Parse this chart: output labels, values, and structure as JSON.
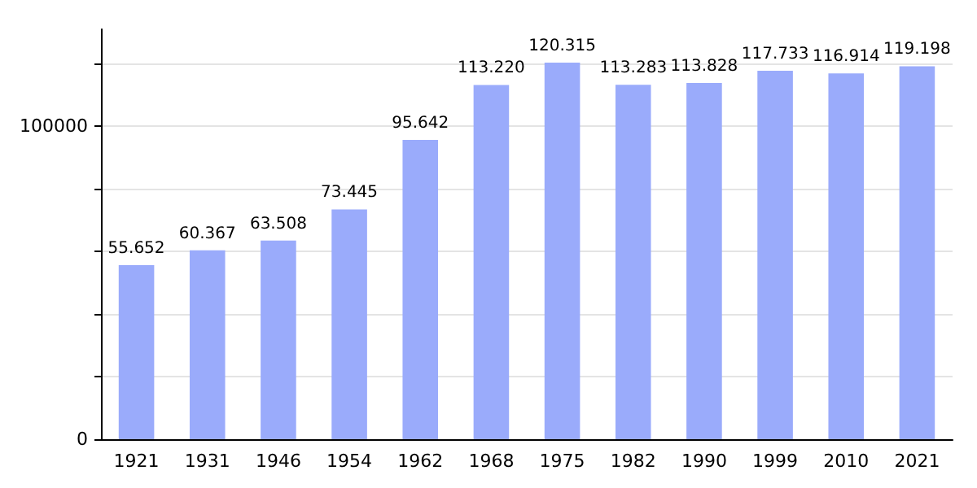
{
  "chart_data": {
    "type": "bar",
    "categories": [
      "1921",
      "1931",
      "1946",
      "1954",
      "1962",
      "1968",
      "1975",
      "1982",
      "1990",
      "1999",
      "2010",
      "2021"
    ],
    "values": [
      55652,
      60367,
      63508,
      73445,
      95642,
      113220,
      120315,
      113283,
      113828,
      117733,
      116914,
      119198
    ],
    "value_labels": [
      "55.652",
      "60.367",
      "63.508",
      "73.445",
      "95.642",
      "113.220",
      "120.315",
      "113.283",
      "113.828",
      "117.733",
      "116.914",
      "119.198"
    ],
    "color": "#9aabfb",
    "ylim": [
      0,
      131000
    ],
    "yticks": [
      0,
      {
        "value": 20000,
        "label": null
      },
      {
        "value": 40000,
        "label": null
      },
      {
        "value": 60000,
        "label": null
      },
      {
        "value": 80000,
        "label": null
      },
      100000,
      {
        "value": 120000,
        "label": null
      }
    ],
    "grid": true
  }
}
